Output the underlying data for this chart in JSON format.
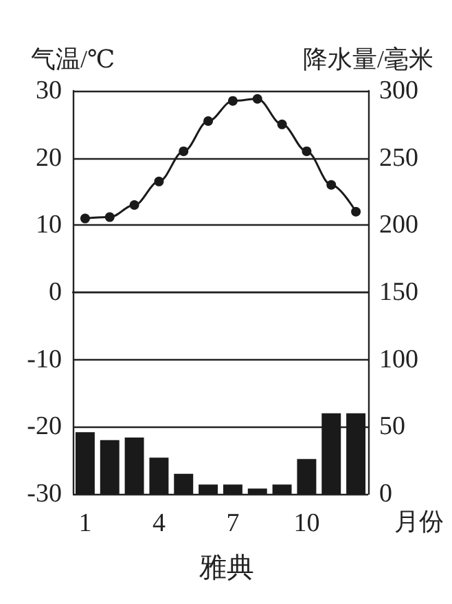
{
  "chart_data": {
    "type": "bar",
    "title": "雅典",
    "xlabel": "月份",
    "ylabel": "气温/℃",
    "y2label": "降水量/毫米",
    "categories": [
      "1",
      null,
      null,
      "4",
      null,
      null,
      "7",
      null,
      null,
      "10",
      null,
      null
    ],
    "series": [
      {
        "axis": "y2",
        "color": "#1a1a1a",
        "values": [
          46,
          40,
          42,
          27,
          15,
          7,
          7,
          4,
          7,
          26,
          60,
          60
        ]
      },
      {
        "type": "line",
        "axis": "y",
        "color": "#1a1a1a",
        "values": [
          11,
          11.2,
          13,
          16.5,
          21,
          25.5,
          28.5,
          28.8,
          25,
          21,
          16,
          12
        ]
      }
    ],
    "ylim": [
      -30,
      30
    ],
    "yticks": [
      -30,
      -20,
      -10,
      0,
      10,
      20,
      30
    ],
    "y2lim": [
      0,
      300
    ],
    "y2ticks": [
      0,
      50,
      100,
      150,
      200,
      250,
      300
    ],
    "grid": "y",
    "legend": false,
    "marker": "circle",
    "line_style": "solid"
  }
}
